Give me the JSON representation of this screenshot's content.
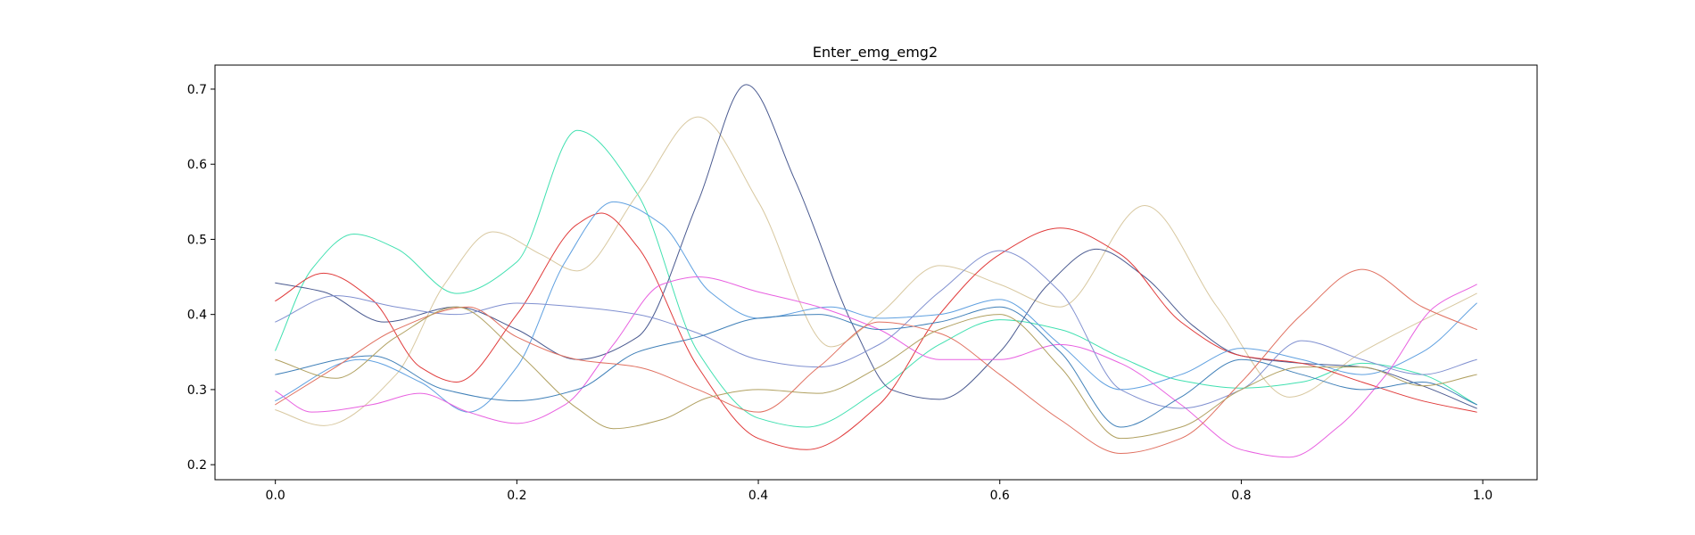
{
  "chart_data": {
    "type": "line",
    "title": "Enter_emg_emg2",
    "xlabel": "",
    "ylabel": "",
    "xlim": [
      -0.05,
      1.045
    ],
    "ylim": [
      0.18,
      0.732
    ],
    "xticks": [
      0.0,
      0.2,
      0.4,
      0.6,
      0.8,
      1.0
    ],
    "xtick_labels": [
      "0.0",
      "0.2",
      "0.4",
      "0.6",
      "0.8",
      "1.0"
    ],
    "yticks": [
      0.2,
      0.3,
      0.4,
      0.5,
      0.6,
      0.7
    ],
    "ytick_labels": [
      "0.2",
      "0.3",
      "0.4",
      "0.5",
      "0.6",
      "0.7"
    ],
    "grid": false,
    "legend": "none",
    "series": [
      {
        "color": "#40e0b0",
        "x": [
          0.0,
          0.03,
          0.065,
          0.1,
          0.15,
          0.2,
          0.25,
          0.3,
          0.35,
          0.4,
          0.44,
          0.5,
          0.55,
          0.6,
          0.65,
          0.7,
          0.75,
          0.8,
          0.85,
          0.9,
          0.95,
          0.995
        ],
        "y": [
          0.352,
          0.46,
          0.507,
          0.488,
          0.428,
          0.47,
          0.645,
          0.56,
          0.35,
          0.262,
          0.25,
          0.3,
          0.36,
          0.393,
          0.38,
          0.343,
          0.312,
          0.302,
          0.31,
          0.335,
          0.32,
          0.28
        ]
      },
      {
        "color": "#d8c8a0",
        "x": [
          0.0,
          0.04,
          0.1,
          0.14,
          0.18,
          0.22,
          0.25,
          0.3,
          0.35,
          0.4,
          0.46,
          0.5,
          0.55,
          0.6,
          0.65,
          0.72,
          0.78,
          0.84,
          0.9,
          0.995
        ],
        "y": [
          0.273,
          0.252,
          0.32,
          0.44,
          0.51,
          0.48,
          0.458,
          0.56,
          0.663,
          0.55,
          0.357,
          0.4,
          0.465,
          0.44,
          0.41,
          0.545,
          0.41,
          0.29,
          0.35,
          0.428
        ]
      },
      {
        "color": "#4a5a90",
        "x": [
          0.0,
          0.04,
          0.09,
          0.15,
          0.2,
          0.25,
          0.3,
          0.35,
          0.39,
          0.43,
          0.48,
          0.51,
          0.55,
          0.6,
          0.64,
          0.68,
          0.72,
          0.76,
          0.8,
          0.85,
          0.9,
          0.95,
          0.995
        ],
        "y": [
          0.442,
          0.43,
          0.39,
          0.41,
          0.38,
          0.34,
          0.37,
          0.55,
          0.706,
          0.58,
          0.38,
          0.3,
          0.287,
          0.35,
          0.44,
          0.487,
          0.45,
          0.385,
          0.345,
          0.335,
          0.33,
          0.305,
          0.275
        ]
      },
      {
        "color": "#e03a3a",
        "x": [
          0.0,
          0.04,
          0.08,
          0.12,
          0.15,
          0.2,
          0.25,
          0.27,
          0.3,
          0.35,
          0.4,
          0.44,
          0.5,
          0.55,
          0.6,
          0.65,
          0.7,
          0.75,
          0.8,
          0.85,
          0.9,
          0.95,
          0.995
        ],
        "y": [
          0.418,
          0.455,
          0.42,
          0.33,
          0.31,
          0.4,
          0.52,
          0.535,
          0.49,
          0.33,
          0.235,
          0.22,
          0.28,
          0.4,
          0.48,
          0.515,
          0.48,
          0.39,
          0.345,
          0.335,
          0.31,
          0.285,
          0.27
        ]
      },
      {
        "color": "#5fa0e0",
        "x": [
          0.0,
          0.07,
          0.12,
          0.16,
          0.2,
          0.24,
          0.28,
          0.32,
          0.36,
          0.4,
          0.46,
          0.5,
          0.55,
          0.6,
          0.65,
          0.7,
          0.75,
          0.8,
          0.85,
          0.9,
          0.95,
          0.995
        ],
        "y": [
          0.285,
          0.34,
          0.31,
          0.27,
          0.33,
          0.47,
          0.55,
          0.52,
          0.43,
          0.395,
          0.41,
          0.395,
          0.4,
          0.42,
          0.36,
          0.3,
          0.32,
          0.355,
          0.34,
          0.32,
          0.35,
          0.415
        ]
      },
      {
        "color": "#e860e0",
        "x": [
          0.0,
          0.03,
          0.08,
          0.12,
          0.16,
          0.2,
          0.24,
          0.28,
          0.32,
          0.35,
          0.4,
          0.45,
          0.5,
          0.55,
          0.6,
          0.65,
          0.7,
          0.75,
          0.8,
          0.84,
          0.88,
          0.92,
          0.96,
          0.995
        ],
        "y": [
          0.298,
          0.27,
          0.28,
          0.295,
          0.27,
          0.255,
          0.28,
          0.36,
          0.44,
          0.45,
          0.43,
          0.41,
          0.38,
          0.34,
          0.34,
          0.36,
          0.335,
          0.28,
          0.22,
          0.21,
          0.25,
          0.32,
          0.41,
          0.44
        ]
      },
      {
        "color": "#8090d0",
        "x": [
          0.0,
          0.05,
          0.1,
          0.15,
          0.2,
          0.25,
          0.3,
          0.35,
          0.4,
          0.45,
          0.5,
          0.55,
          0.6,
          0.65,
          0.7,
          0.75,
          0.8,
          0.85,
          0.9,
          0.95,
          0.995
        ],
        "y": [
          0.39,
          0.425,
          0.41,
          0.4,
          0.415,
          0.41,
          0.4,
          0.375,
          0.34,
          0.33,
          0.36,
          0.43,
          0.485,
          0.43,
          0.3,
          0.275,
          0.3,
          0.365,
          0.34,
          0.32,
          0.34
        ]
      },
      {
        "color": "#4080b8",
        "x": [
          0.0,
          0.08,
          0.14,
          0.2,
          0.25,
          0.3,
          0.35,
          0.4,
          0.45,
          0.5,
          0.55,
          0.6,
          0.65,
          0.7,
          0.75,
          0.8,
          0.85,
          0.9,
          0.95,
          0.995
        ],
        "y": [
          0.32,
          0.345,
          0.3,
          0.285,
          0.3,
          0.35,
          0.37,
          0.395,
          0.4,
          0.38,
          0.39,
          0.41,
          0.35,
          0.25,
          0.29,
          0.34,
          0.32,
          0.3,
          0.31,
          0.28
        ]
      },
      {
        "color": "#e07060",
        "x": [
          0.0,
          0.05,
          0.1,
          0.16,
          0.2,
          0.25,
          0.3,
          0.35,
          0.4,
          0.45,
          0.5,
          0.55,
          0.6,
          0.65,
          0.7,
          0.75,
          0.8,
          0.85,
          0.9,
          0.95,
          0.995
        ],
        "y": [
          0.28,
          0.33,
          0.38,
          0.41,
          0.37,
          0.34,
          0.33,
          0.3,
          0.27,
          0.33,
          0.39,
          0.375,
          0.32,
          0.26,
          0.215,
          0.235,
          0.31,
          0.4,
          0.46,
          0.41,
          0.38
        ]
      },
      {
        "color": "#b0a060",
        "x": [
          0.0,
          0.05,
          0.1,
          0.15,
          0.2,
          0.25,
          0.28,
          0.32,
          0.36,
          0.4,
          0.45,
          0.5,
          0.55,
          0.6,
          0.65,
          0.7,
          0.75,
          0.8,
          0.85,
          0.9,
          0.95,
          0.995
        ],
        "y": [
          0.34,
          0.315,
          0.37,
          0.41,
          0.35,
          0.275,
          0.248,
          0.26,
          0.29,
          0.3,
          0.295,
          0.33,
          0.38,
          0.4,
          0.33,
          0.235,
          0.25,
          0.3,
          0.33,
          0.33,
          0.305,
          0.32
        ]
      }
    ]
  }
}
